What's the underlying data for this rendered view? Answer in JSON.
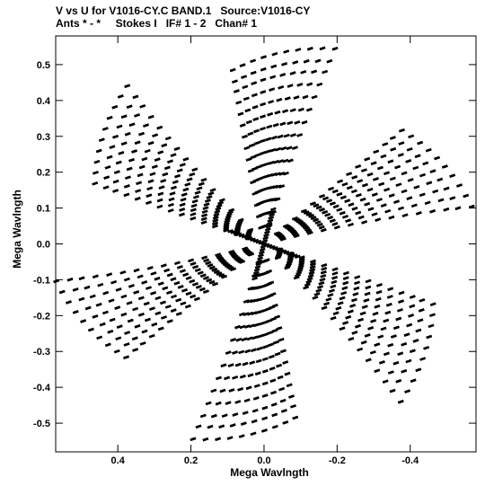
{
  "header": {
    "title": "V vs U for V1016-CY.C BAND.1   Source:V1016-CY",
    "subtitle": "Ants * - *     Stokes I   IF# 1 - 2   Chan# 1"
  },
  "chart_data": {
    "type": "scatter",
    "title": "V vs U for V1016-CY.C BAND.1   Source:V1016-CY",
    "subtitle": "Ants * - *     Stokes I   IF# 1 - 2   Chan# 1",
    "xlabel": "Mega Wavlngth",
    "ylabel": "Mega Wavlngth",
    "xlim": [
      0.57,
      -0.58
    ],
    "ylim": [
      -0.58,
      0.58
    ],
    "x_reversed": true,
    "x_ticks": [
      0.4,
      0.2,
      0.0,
      -0.2,
      -0.4
    ],
    "x_tick_labels": [
      "0.4",
      "0.2",
      "0.0",
      "-0.2",
      "-0.4"
    ],
    "y_ticks": [
      0.5,
      0.4,
      0.3,
      0.2,
      0.1,
      0.0,
      -0.1,
      -0.2,
      -0.3,
      -0.4,
      -0.5
    ],
    "y_tick_labels": [
      "0.5",
      "0.4",
      "0.3",
      "0.2",
      "0.1",
      "0.0",
      "-0.1",
      "-0.2",
      "-0.3",
      "-0.4",
      "-0.5"
    ],
    "grid": false,
    "marker": "short-dash",
    "color": "#000000",
    "pattern": {
      "description": "six-armed uv-coverage star with conjugate-symmetric points",
      "arms": 6,
      "rotation_deg": 20,
      "spiral_span_deg": 26,
      "radii": [
        0.05,
        0.085,
        0.12,
        0.155,
        0.19,
        0.225,
        0.26,
        0.295,
        0.33,
        0.365,
        0.4,
        0.435,
        0.47,
        0.5,
        0.535
      ],
      "points_per_track": 10
    }
  }
}
